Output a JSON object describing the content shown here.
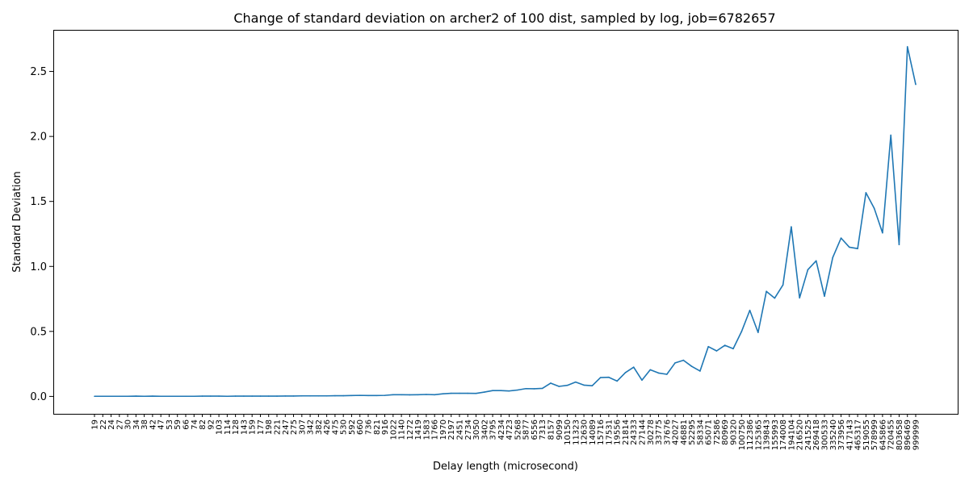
{
  "chart_data": {
    "type": "line",
    "title": "Change of standard deviation on archer2 of 100 dist, sampled by log, job=6782657",
    "xlabel": "Delay length (microsecond)",
    "ylabel": "Standard Deviation",
    "ylim": [
      -0.134,
      2.82
    ],
    "yticks": [
      "0.0",
      "0.5",
      "1.0",
      "1.5",
      "2.0",
      "2.5"
    ],
    "ytick_values": [
      0,
      0.5,
      1.0,
      1.5,
      2.0,
      2.5
    ],
    "grid": false,
    "line_color": "#1f77b4",
    "categories": [
      "19",
      "22",
      "24",
      "27",
      "30",
      "34",
      "38",
      "42",
      "47",
      "53",
      "59",
      "66",
      "74",
      "82",
      "92",
      "103",
      "114",
      "128",
      "143",
      "159",
      "177",
      "198",
      "221",
      "247",
      "275",
      "307",
      "342",
      "382",
      "426",
      "475",
      "530",
      "592",
      "660",
      "736",
      "821",
      "916",
      "1022",
      "1140",
      "1272",
      "1419",
      "1583",
      "1766",
      "1970",
      "2197",
      "2451",
      "2734",
      "3050",
      "3402",
      "3795",
      "4234",
      "4723",
      "5268",
      "5877",
      "6556",
      "7313",
      "8157",
      "9099",
      "10150",
      "11323",
      "12630",
      "14089",
      "15716",
      "17531",
      "19556",
      "21814",
      "24333",
      "27144",
      "30278",
      "33775",
      "37676",
      "42027",
      "46881",
      "52295",
      "58334",
      "65071",
      "72586",
      "80969",
      "90320",
      "100750",
      "112386",
      "125365",
      "139843",
      "155993",
      "174008",
      "194104",
      "216520",
      "241525",
      "269418",
      "300533",
      "335240",
      "373956",
      "417143",
      "465317",
      "519055",
      "578999",
      "645866",
      "720455",
      "803658",
      "896469",
      "999999"
    ],
    "values": [
      0.001,
      0.001,
      0.001,
      0.001,
      0.001,
      0.002,
      0.001,
      0.002,
      0.001,
      0.001,
      0.001,
      0.001,
      0.001,
      0.002,
      0.002,
      0.002,
      0.001,
      0.002,
      0.002,
      0.002,
      0.002,
      0.002,
      0.002,
      0.003,
      0.003,
      0.004,
      0.004,
      0.004,
      0.004,
      0.005,
      0.005,
      0.007,
      0.008,
      0.007,
      0.007,
      0.008,
      0.013,
      0.013,
      0.012,
      0.013,
      0.015,
      0.013,
      0.02,
      0.024,
      0.024,
      0.024,
      0.023,
      0.033,
      0.045,
      0.045,
      0.042,
      0.049,
      0.06,
      0.059,
      0.062,
      0.102,
      0.077,
      0.085,
      0.11,
      0.087,
      0.082,
      0.145,
      0.147,
      0.118,
      0.183,
      0.225,
      0.125,
      0.205,
      0.18,
      0.17,
      0.258,
      0.278,
      0.231,
      0.195,
      0.383,
      0.35,
      0.393,
      0.367,
      0.498,
      0.662,
      0.492,
      0.808,
      0.756,
      0.858,
      1.305,
      0.758,
      0.975,
      1.043,
      0.771,
      1.069,
      1.218,
      1.148,
      1.137,
      1.567,
      1.447,
      1.258,
      2.01,
      1.168,
      2.69,
      2.4
    ]
  }
}
